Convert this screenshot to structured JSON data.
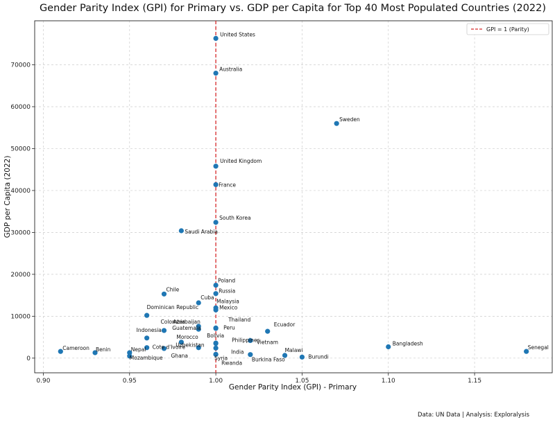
{
  "chart_data": {
    "type": "scatter",
    "title": "Gender Parity Index (GPI) for Primary vs. GDP per Capita for Top 40 Most Populated Countries (2022)",
    "xlabel": "Gender Parity Index (GPI) - Primary",
    "ylabel": "GDP per Capita (2022)",
    "xlim": [
      0.895,
      1.195
    ],
    "ylim": [
      -3500,
      80500
    ],
    "x_ticks": [
      0.9,
      0.95,
      1.0,
      1.05,
      1.1,
      1.15
    ],
    "x_tick_labels": [
      "0.90",
      "0.95",
      "1.00",
      "1.05",
      "1.10",
      "1.15"
    ],
    "y_ticks": [
      0,
      10000,
      20000,
      30000,
      40000,
      50000,
      60000,
      70000
    ],
    "y_tick_labels": [
      "0",
      "10000",
      "20000",
      "30000",
      "40000",
      "50000",
      "60000",
      "70000"
    ],
    "grid": true,
    "point_color": "#1f77b4",
    "reference_line": {
      "x": 1.0,
      "color": "#d62728",
      "style": "dashed",
      "legend": "GPI = 1 (Parity)"
    },
    "legend_position": "top-right",
    "points": [
      {
        "name": "United States",
        "x": 1.0,
        "y": 76300
      },
      {
        "name": "Australia",
        "x": 1.0,
        "y": 68000
      },
      {
        "name": "Sweden",
        "x": 1.07,
        "y": 56000
      },
      {
        "name": "United Kingdom",
        "x": 1.0,
        "y": 45800
      },
      {
        "name": "France",
        "x": 1.0,
        "y": 41400
      },
      {
        "name": "South Korea",
        "x": 1.0,
        "y": 32400
      },
      {
        "name": "Saudi Arabia",
        "x": 0.98,
        "y": 30400
      },
      {
        "name": "Poland",
        "x": 1.0,
        "y": 17400
      },
      {
        "name": "Russia",
        "x": 1.0,
        "y": 15400
      },
      {
        "name": "Chile",
        "x": 0.97,
        "y": 15300
      },
      {
        "name": "Cuba",
        "x": 0.99,
        "y": 13200
      },
      {
        "name": "Malaysia",
        "x": 1.0,
        "y": 12000
      },
      {
        "name": "Mexico",
        "x": 1.0,
        "y": 11500
      },
      {
        "name": "Dominican Republic",
        "x": 0.96,
        "y": 10200
      },
      {
        "name": "Thailand",
        "x": 1.0,
        "y": 7100
      },
      {
        "name": "Azerbaijan",
        "x": 0.99,
        "y": 7600
      },
      {
        "name": "Colombia",
        "x": 0.97,
        "y": 6600
      },
      {
        "name": "Guatemala",
        "x": 0.99,
        "y": 6900
      },
      {
        "name": "Peru",
        "x": 1.0,
        "y": 7200
      },
      {
        "name": "Ecuador",
        "x": 1.03,
        "y": 6400
      },
      {
        "name": "Vietnam",
        "x": 1.02,
        "y": 4200
      },
      {
        "name": "Indonesia",
        "x": 0.96,
        "y": 4800
      },
      {
        "name": "Morocco",
        "x": 0.98,
        "y": 3800
      },
      {
        "name": "Bolivia",
        "x": 1.0,
        "y": 3600
      },
      {
        "name": "Philippines",
        "x": 1.0,
        "y": 3500
      },
      {
        "name": "Uzbekistan",
        "x": 0.99,
        "y": 2500
      },
      {
        "name": "Cote d'Ivoire",
        "x": 0.96,
        "y": 2500
      },
      {
        "name": "Cameroon",
        "x": 0.91,
        "y": 1600
      },
      {
        "name": "Benin",
        "x": 0.93,
        "y": 1300
      },
      {
        "name": "Nepal",
        "x": 0.95,
        "y": 1300
      },
      {
        "name": "Mozambique",
        "x": 0.95,
        "y": 500
      },
      {
        "name": "Ghana",
        "x": 0.97,
        "y": 2300
      },
      {
        "name": "India",
        "x": 1.0,
        "y": 2400
      },
      {
        "name": "Syria",
        "x": 1.0,
        "y": 900
      },
      {
        "name": "Rwanda",
        "x": 1.0,
        "y": 900
      },
      {
        "name": "Burkina Faso",
        "x": 1.02,
        "y": 850
      },
      {
        "name": "Malawi",
        "x": 1.04,
        "y": 650
      },
      {
        "name": "Burundi",
        "x": 1.05,
        "y": 250
      },
      {
        "name": "Bangladesh",
        "x": 1.1,
        "y": 2700
      },
      {
        "name": "Senegal",
        "x": 1.18,
        "y": 1600
      }
    ]
  },
  "footer": "Data: UN Data | Analysis: Exploralysis"
}
